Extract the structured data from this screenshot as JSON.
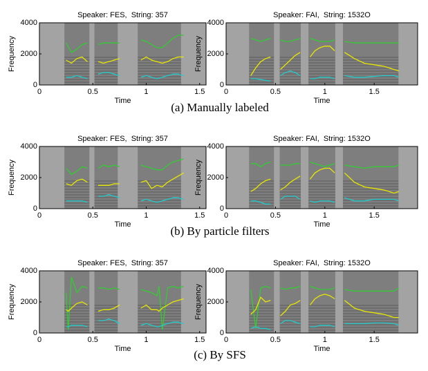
{
  "chart_data": [
    {
      "type": "line",
      "title": "Speaker: FES,  String: 357",
      "x_label": "Time",
      "y_label": "Frequency",
      "xlim": [
        0,
        1.56
      ],
      "xticks": [
        0,
        0.5,
        1,
        1.5
      ],
      "ylim": [
        0,
        4000
      ],
      "yticks": [
        0,
        2000,
        4000
      ],
      "x": [
        0.25,
        0.3,
        0.35,
        0.4,
        0.45,
        0.5,
        0.55,
        0.6,
        0.65,
        0.7,
        0.75,
        0.8,
        0.95,
        1.0,
        1.05,
        1.1,
        1.15,
        1.2,
        1.25,
        1.3,
        1.35
      ],
      "series": [
        {
          "color": "#33cc33",
          "values": [
            2700,
            2100,
            2300,
            2600,
            2700,
            null,
            2600,
            2700,
            2700,
            2700,
            2700,
            null,
            2900,
            2800,
            2600,
            2400,
            2400,
            2700,
            3000,
            3200,
            3200
          ]
        },
        {
          "color": "#e8e800",
          "values": [
            1600,
            1400,
            1700,
            1800,
            1500,
            null,
            1500,
            1400,
            1500,
            1600,
            1700,
            null,
            1600,
            1800,
            1600,
            1500,
            1400,
            1500,
            1700,
            1800,
            1800
          ]
        },
        {
          "color": "#22cccc",
          "values": [
            500,
            500,
            600,
            500,
            400,
            null,
            700,
            800,
            800,
            700,
            600,
            null,
            500,
            600,
            500,
            400,
            500,
            600,
            700,
            700,
            600
          ]
        }
      ]
    },
    {
      "type": "line",
      "title": "Speaker: FAI,  String: 1532O",
      "x_label": "Time",
      "y_label": "Frequency",
      "xlim": [
        0,
        1.94
      ],
      "xticks": [
        0,
        0.5,
        1,
        1.5
      ],
      "ylim": [
        0,
        4000
      ],
      "yticks": [
        0,
        2000,
        4000
      ],
      "x": [
        0.25,
        0.3,
        0.35,
        0.4,
        0.45,
        0.5,
        0.55,
        0.6,
        0.65,
        0.7,
        0.75,
        0.8,
        0.85,
        0.9,
        0.95,
        1.0,
        1.05,
        1.1,
        1.15,
        1.2,
        1.3,
        1.4,
        1.5,
        1.6,
        1.7,
        1.75
      ],
      "series": [
        {
          "color": "#33cc33",
          "values": [
            3000,
            2900,
            2800,
            2900,
            3000,
            null,
            2900,
            2800,
            2800,
            2900,
            3000,
            null,
            3000,
            2900,
            2800,
            2800,
            2800,
            2900,
            null,
            2800,
            2700,
            2700,
            2700,
            2700,
            2700,
            2700
          ]
        },
        {
          "color": "#e8e800",
          "values": [
            600,
            1100,
            1500,
            1700,
            1800,
            null,
            1000,
            1300,
            1600,
            1900,
            2100,
            null,
            1800,
            2200,
            2400,
            2500,
            2500,
            2200,
            null,
            2100,
            1700,
            1400,
            1300,
            1200,
            1000,
            900
          ]
        },
        {
          "color": "#22cccc",
          "values": [
            400,
            400,
            350,
            300,
            250,
            null,
            600,
            800,
            900,
            800,
            600,
            null,
            400,
            400,
            500,
            500,
            500,
            400,
            null,
            600,
            500,
            500,
            550,
            600,
            600,
            500
          ]
        }
      ]
    },
    {
      "type": "line",
      "title": "Speaker: FES,  String: 357",
      "x_label": "Time",
      "y_label": "Frequency",
      "xlim": [
        0,
        1.56
      ],
      "xticks": [
        0,
        0.5,
        1,
        1.5
      ],
      "ylim": [
        0,
        4000
      ],
      "yticks": [
        0,
        2000,
        4000
      ],
      "x": [
        0.25,
        0.3,
        0.35,
        0.4,
        0.45,
        0.5,
        0.55,
        0.6,
        0.65,
        0.7,
        0.75,
        0.8,
        0.95,
        1.0,
        1.05,
        1.1,
        1.15,
        1.2,
        1.25,
        1.3,
        1.35
      ],
      "series": [
        {
          "color": "#33cc33",
          "values": [
            2600,
            2200,
            2400,
            2700,
            2600,
            null,
            2600,
            2800,
            2700,
            2800,
            2700,
            null,
            2800,
            2700,
            2600,
            2500,
            2500,
            2800,
            3000,
            3100,
            3200
          ]
        },
        {
          "color": "#e8e800",
          "values": [
            1600,
            1500,
            1800,
            1900,
            1700,
            null,
            1500,
            1500,
            1500,
            1600,
            1600,
            null,
            1700,
            1800,
            1300,
            1500,
            1400,
            1700,
            1900,
            2100,
            2300
          ]
        },
        {
          "color": "#22cccc",
          "values": [
            500,
            500,
            500,
            500,
            400,
            null,
            800,
            800,
            900,
            800,
            700,
            null,
            500,
            600,
            500,
            400,
            500,
            600,
            700,
            700,
            600
          ]
        }
      ]
    },
    {
      "type": "line",
      "title": "Speaker: FAI,  String: 1532O",
      "x_label": "Time",
      "y_label": "Frequency",
      "xlim": [
        0,
        1.94
      ],
      "xticks": [
        0,
        0.5,
        1,
        1.5
      ],
      "ylim": [
        0,
        4000
      ],
      "yticks": [
        0,
        2000,
        4000
      ],
      "x": [
        0.25,
        0.3,
        0.35,
        0.4,
        0.45,
        0.5,
        0.55,
        0.6,
        0.65,
        0.7,
        0.75,
        0.8,
        0.85,
        0.9,
        0.95,
        1.0,
        1.05,
        1.1,
        1.15,
        1.2,
        1.3,
        1.4,
        1.5,
        1.6,
        1.7,
        1.75
      ],
      "series": [
        {
          "color": "#33cc33",
          "values": [
            2900,
            2900,
            2700,
            2900,
            3000,
            null,
            2800,
            2800,
            2800,
            2900,
            2900,
            null,
            3000,
            2900,
            2800,
            2700,
            2800,
            2900,
            null,
            2800,
            2700,
            2600,
            2700,
            2700,
            2700,
            2800
          ]
        },
        {
          "color": "#e8e800",
          "values": [
            1100,
            1300,
            1600,
            1800,
            1900,
            null,
            1200,
            1400,
            1700,
            1900,
            2100,
            null,
            1900,
            2300,
            2500,
            2600,
            2600,
            2300,
            null,
            2300,
            1700,
            1400,
            1300,
            1200,
            1000,
            1100
          ]
        },
        {
          "color": "#22cccc",
          "values": [
            500,
            500,
            400,
            300,
            300,
            null,
            600,
            800,
            800,
            800,
            600,
            null,
            500,
            400,
            500,
            500,
            500,
            400,
            null,
            700,
            500,
            500,
            600,
            600,
            600,
            500
          ]
        }
      ]
    },
    {
      "type": "line",
      "title": "Speaker: FES,  String: 357",
      "x_label": "Time",
      "y_label": "Frequency",
      "xlim": [
        0,
        1.56
      ],
      "xticks": [
        0,
        0.5,
        1,
        1.5
      ],
      "ylim": [
        0,
        4000
      ],
      "yticks": [
        0,
        2000,
        4000
      ],
      "x": [
        0.25,
        0.27,
        0.3,
        0.35,
        0.4,
        0.45,
        0.5,
        0.55,
        0.6,
        0.65,
        0.7,
        0.75,
        0.8,
        0.95,
        1.0,
        1.05,
        1.1,
        1.12,
        1.15,
        1.2,
        1.25,
        1.3,
        1.35
      ],
      "series": [
        {
          "color": "#33cc33",
          "values": [
            2600,
            200,
            3600,
            2600,
            3000,
            2900,
            null,
            2900,
            2900,
            2800,
            2900,
            2800,
            null,
            2800,
            2700,
            2600,
            2400,
            3000,
            200,
            2900,
            3000,
            2900,
            3000
          ]
        },
        {
          "color": "#e8e800",
          "values": [
            1500,
            1400,
            1600,
            1900,
            2000,
            1800,
            null,
            1400,
            1500,
            1500,
            1600,
            1800,
            null,
            1600,
            1800,
            1500,
            1500,
            1400,
            1600,
            1800,
            2000,
            2100,
            2200
          ]
        },
        {
          "color": "#22cccc",
          "values": [
            400,
            400,
            500,
            500,
            500,
            400,
            null,
            800,
            800,
            900,
            800,
            600,
            null,
            500,
            600,
            500,
            400,
            400,
            500,
            600,
            700,
            700,
            600
          ]
        }
      ]
    },
    {
      "type": "line",
      "title": "Speaker: FAI,  String: 1532O",
      "x_label": "Time",
      "y_label": "Frequency",
      "xlim": [
        0,
        1.94
      ],
      "xticks": [
        0,
        0.5,
        1,
        1.5
      ],
      "ylim": [
        0,
        4000
      ],
      "yticks": [
        0,
        2000,
        4000
      ],
      "x": [
        0.25,
        0.3,
        0.35,
        0.4,
        0.45,
        0.5,
        0.55,
        0.6,
        0.65,
        0.7,
        0.75,
        0.8,
        0.85,
        0.9,
        0.95,
        1.0,
        1.05,
        1.1,
        1.15,
        1.2,
        1.3,
        1.4,
        1.5,
        1.6,
        1.7,
        1.75
      ],
      "series": [
        {
          "color": "#33cc33",
          "values": [
            2800,
            300,
            2900,
            3000,
            2900,
            null,
            2900,
            2800,
            2900,
            2900,
            3000,
            null,
            3000,
            2900,
            2800,
            2800,
            2800,
            2900,
            null,
            2800,
            2700,
            2700,
            2700,
            2700,
            2700,
            2900
          ]
        },
        {
          "color": "#e8e800",
          "values": [
            1200,
            1500,
            2300,
            2000,
            2100,
            null,
            1100,
            1400,
            1800,
            1900,
            2100,
            null,
            1800,
            2200,
            2400,
            2500,
            2400,
            2200,
            null,
            2100,
            1600,
            1400,
            1300,
            1200,
            1000,
            1000
          ]
        },
        {
          "color": "#22cccc",
          "values": [
            300,
            400,
            300,
            300,
            200,
            null,
            600,
            800,
            800,
            700,
            600,
            null,
            400,
            400,
            500,
            500,
            500,
            400,
            null,
            600,
            600,
            600,
            650,
            650,
            600,
            500
          ]
        }
      ]
    }
  ],
  "captions": [
    "(a) Manually labeled",
    "(b) By particle filters",
    "(c) By SFS"
  ]
}
